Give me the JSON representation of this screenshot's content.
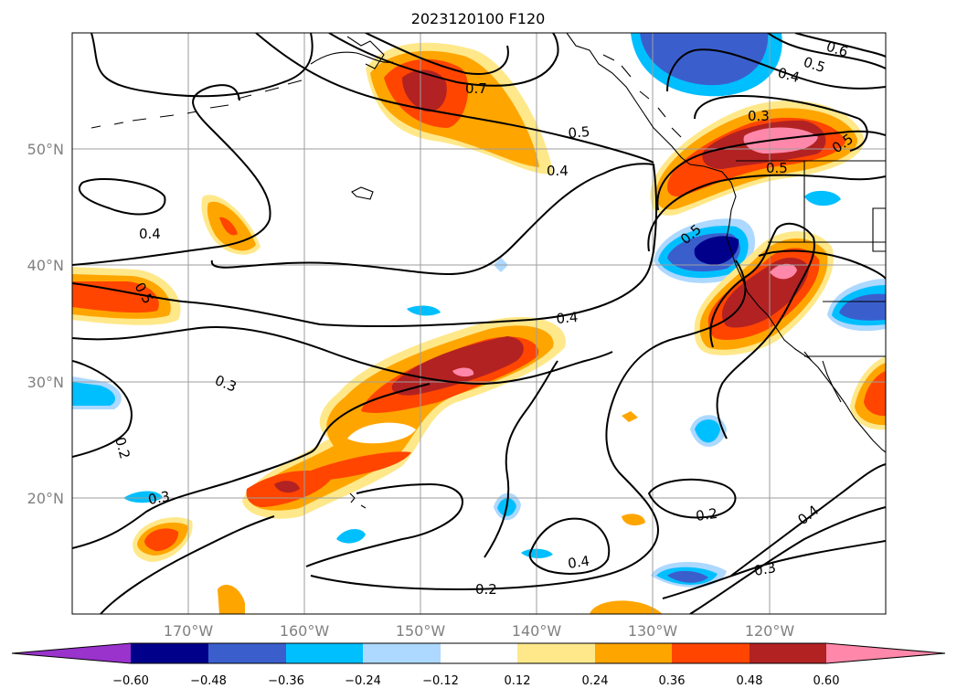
{
  "title": "2023120100 F120",
  "map": {
    "lon_labels": [
      "170°W",
      "160°W",
      "150°W",
      "140°W",
      "130°W",
      "120°W"
    ],
    "lat_labels": [
      "50°N",
      "40°N",
      "30°N",
      "20°N"
    ],
    "contour_labels": [
      "0.7",
      "0.6",
      "0.5",
      "0.4",
      "0.3",
      "0.5",
      "0.5",
      "0.5",
      "0.4",
      "0.4",
      "0.5",
      "0.5",
      "0.4",
      "0.3",
      "0.2",
      "0.3",
      "0.4",
      "0.2",
      "0.2",
      "0.4",
      "0.3",
      "0.5"
    ]
  },
  "colorbar": {
    "ticks": [
      "−0.60",
      "−0.48",
      "−0.36",
      "−0.24",
      "−0.12",
      "0.12",
      "0.24",
      "0.36",
      "0.48",
      "0.60"
    ],
    "colors": [
      "#9933cc",
      "#00008b",
      "#3a5fcd",
      "#00bfff",
      "#add8ff",
      "#ffffff",
      "#ffe88a",
      "#ffa500",
      "#ff4500",
      "#b22222",
      "#ff88aa"
    ]
  }
}
